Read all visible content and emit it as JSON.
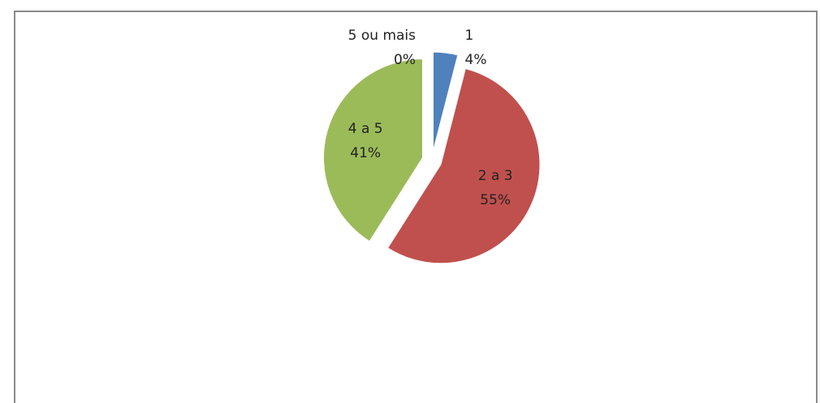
{
  "chart_data": {
    "type": "pie",
    "categories": [
      "1",
      "2 a 3",
      "4 a 5",
      "5 ou mais"
    ],
    "values": [
      4,
      55,
      41,
      0
    ],
    "value_labels": [
      "4%",
      "55%",
      "41%",
      "0%"
    ],
    "colors": [
      "#4f81bd",
      "#c0504d",
      "#9bbb59",
      "#8064a2"
    ]
  }
}
